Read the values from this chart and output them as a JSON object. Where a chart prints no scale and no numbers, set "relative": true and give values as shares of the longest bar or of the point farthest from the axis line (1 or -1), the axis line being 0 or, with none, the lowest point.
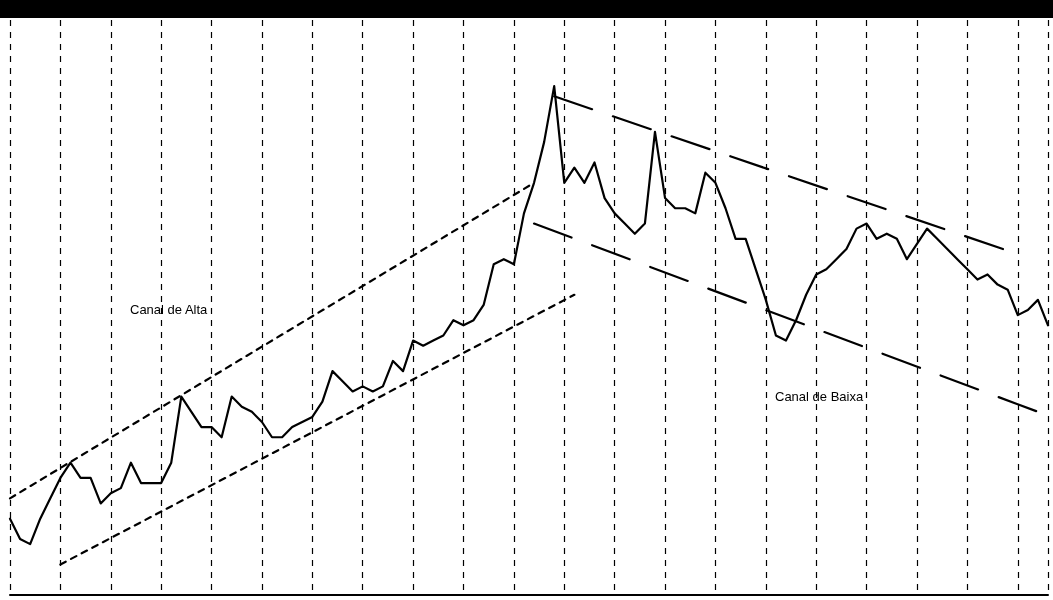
{
  "chart_data": {
    "type": "line",
    "relative": true,
    "grid": "x",
    "marker": "none",
    "categories": [
      null,
      null,
      null,
      null,
      null,
      null,
      null,
      null,
      null,
      null,
      null,
      null,
      null,
      null,
      null,
      null,
      null,
      null,
      null,
      null,
      null,
      null,
      null,
      null,
      null,
      null,
      null,
      null,
      null,
      null,
      null,
      null,
      null,
      null,
      null,
      null,
      null,
      null,
      null,
      null,
      null,
      null,
      null,
      null,
      null,
      null,
      null,
      null,
      null,
      null,
      null,
      null,
      null,
      null,
      null,
      null,
      null,
      null,
      null,
      null,
      null,
      null,
      null,
      null,
      null,
      null,
      null,
      null,
      null,
      null,
      null,
      null,
      null,
      null,
      null,
      null,
      null,
      null,
      null,
      null,
      null,
      null,
      null,
      null,
      null,
      null,
      null,
      null,
      null,
      null,
      null,
      null,
      null,
      null,
      null,
      null,
      null,
      null,
      null,
      null,
      null,
      null,
      null,
      null
    ],
    "annotations": [
      "Canal de Alta",
      "Canal de Baixa"
    ],
    "series": [
      {
        "color": "#000000",
        "line_style": "solid",
        "values": [
          0.15,
          0.11,
          0.1,
          0.15,
          0.19,
          0.23,
          0.26,
          0.23,
          0.23,
          0.18,
          0.2,
          0.21,
          0.26,
          0.22,
          0.22,
          0.22,
          0.26,
          0.39,
          0.36,
          0.33,
          0.33,
          0.31,
          0.39,
          0.37,
          0.36,
          0.34,
          0.31,
          0.31,
          0.33,
          0.34,
          0.35,
          0.38,
          0.44,
          0.42,
          0.4,
          0.41,
          0.4,
          0.41,
          0.46,
          0.44,
          0.5,
          0.49,
          0.5,
          0.51,
          0.54,
          0.53,
          0.54,
          0.57,
          0.65,
          0.66,
          0.65,
          0.75,
          0.81,
          0.89,
          1.0,
          0.81,
          0.84,
          0.81,
          0.85,
          0.78,
          0.75,
          0.73,
          0.71,
          0.73,
          0.91,
          0.78,
          0.76,
          0.76,
          0.75,
          0.83,
          0.81,
          0.76,
          0.7,
          0.7,
          0.64,
          0.58,
          0.51,
          0.5,
          0.54,
          0.59,
          0.63,
          0.64,
          0.66,
          0.68,
          0.72,
          0.73,
          0.7,
          0.71,
          0.7,
          0.66,
          0.69,
          0.72,
          0.7,
          0.68,
          0.66,
          0.64,
          0.62,
          0.63,
          0.61,
          0.6,
          0.55,
          0.56,
          0.58,
          0.53
        ]
      },
      {
        "type": "line",
        "color": "#000000",
        "line_style": "dotted",
        "values": [
          0.19,
          null,
          null,
          null,
          null,
          null,
          null,
          null,
          null,
          null,
          null,
          null,
          null,
          null,
          null,
          null,
          null,
          null,
          null,
          null,
          null,
          null,
          null,
          null,
          null,
          null,
          null,
          null,
          null,
          null,
          null,
          null,
          null,
          null,
          null,
          null,
          null,
          null,
          null,
          null,
          null,
          null,
          null,
          null,
          null,
          null,
          null,
          null,
          null,
          null,
          null,
          null,
          0.81,
          null,
          null,
          null,
          null,
          null,
          null,
          null,
          null,
          null,
          null,
          null,
          null,
          null,
          null,
          null,
          null,
          null,
          null,
          null,
          null,
          null,
          null,
          null,
          null,
          null,
          null,
          null,
          null,
          null,
          null,
          null,
          null,
          null,
          null,
          null,
          null,
          null,
          null,
          null,
          null,
          null,
          null,
          null,
          null,
          null,
          null,
          null,
          null,
          null,
          null,
          null
        ]
      },
      {
        "type": "line",
        "color": "#000000",
        "line_style": "dotted",
        "values": [
          null,
          null,
          null,
          null,
          null,
          0.06,
          null,
          null,
          null,
          null,
          null,
          null,
          null,
          null,
          null,
          null,
          null,
          null,
          null,
          null,
          null,
          null,
          null,
          null,
          null,
          null,
          null,
          null,
          null,
          null,
          null,
          null,
          null,
          null,
          null,
          null,
          null,
          null,
          null,
          null,
          null,
          null,
          null,
          null,
          null,
          null,
          null,
          null,
          null,
          null,
          null,
          null,
          null,
          null,
          null,
          null,
          0.59,
          null,
          null,
          null,
          null,
          null,
          null,
          null,
          null,
          null,
          null,
          null,
          null,
          null,
          null,
          null,
          null,
          null,
          null,
          null,
          null,
          null,
          null,
          null,
          null,
          null,
          null,
          null,
          null,
          null,
          null,
          null,
          null,
          null,
          null,
          null,
          null,
          null,
          null,
          null,
          null,
          null,
          null,
          null,
          null,
          null,
          null,
          null
        ]
      },
      {
        "type": "line",
        "color": "#000000",
        "line_style": "dashed",
        "values": [
          null,
          null,
          null,
          null,
          null,
          null,
          null,
          null,
          null,
          null,
          null,
          null,
          null,
          null,
          null,
          null,
          null,
          null,
          null,
          null,
          null,
          null,
          null,
          null,
          null,
          null,
          null,
          null,
          null,
          null,
          null,
          null,
          null,
          null,
          null,
          null,
          null,
          null,
          null,
          null,
          null,
          null,
          null,
          null,
          null,
          null,
          null,
          null,
          null,
          null,
          null,
          null,
          null,
          null,
          0.98,
          null,
          null,
          null,
          null,
          null,
          null,
          null,
          null,
          null,
          null,
          null,
          null,
          null,
          null,
          null,
          null,
          null,
          null,
          null,
          null,
          null,
          null,
          null,
          null,
          null,
          null,
          null,
          null,
          null,
          null,
          null,
          null,
          null,
          null,
          null,
          null,
          null,
          null,
          null,
          null,
          null,
          null,
          null,
          null,
          null,
          0.67,
          null,
          null,
          null
        ]
      },
      {
        "type": "line",
        "color": "#000000",
        "line_style": "dashed",
        "values": [
          null,
          null,
          null,
          null,
          null,
          null,
          null,
          null,
          null,
          null,
          null,
          null,
          null,
          null,
          null,
          null,
          null,
          null,
          null,
          null,
          null,
          null,
          null,
          null,
          null,
          null,
          null,
          null,
          null,
          null,
          null,
          null,
          null,
          null,
          null,
          null,
          null,
          null,
          null,
          null,
          null,
          null,
          null,
          null,
          null,
          null,
          null,
          null,
          null,
          null,
          null,
          null,
          0.73,
          null,
          null,
          null,
          null,
          null,
          null,
          null,
          null,
          null,
          null,
          null,
          null,
          null,
          null,
          null,
          null,
          null,
          null,
          null,
          null,
          null,
          null,
          null,
          null,
          null,
          null,
          null,
          null,
          null,
          null,
          null,
          null,
          null,
          null,
          null,
          null,
          null,
          null,
          null,
          null,
          null,
          null,
          null,
          null,
          null,
          null,
          null,
          null,
          null,
          0.36,
          null
        ]
      }
    ]
  }
}
